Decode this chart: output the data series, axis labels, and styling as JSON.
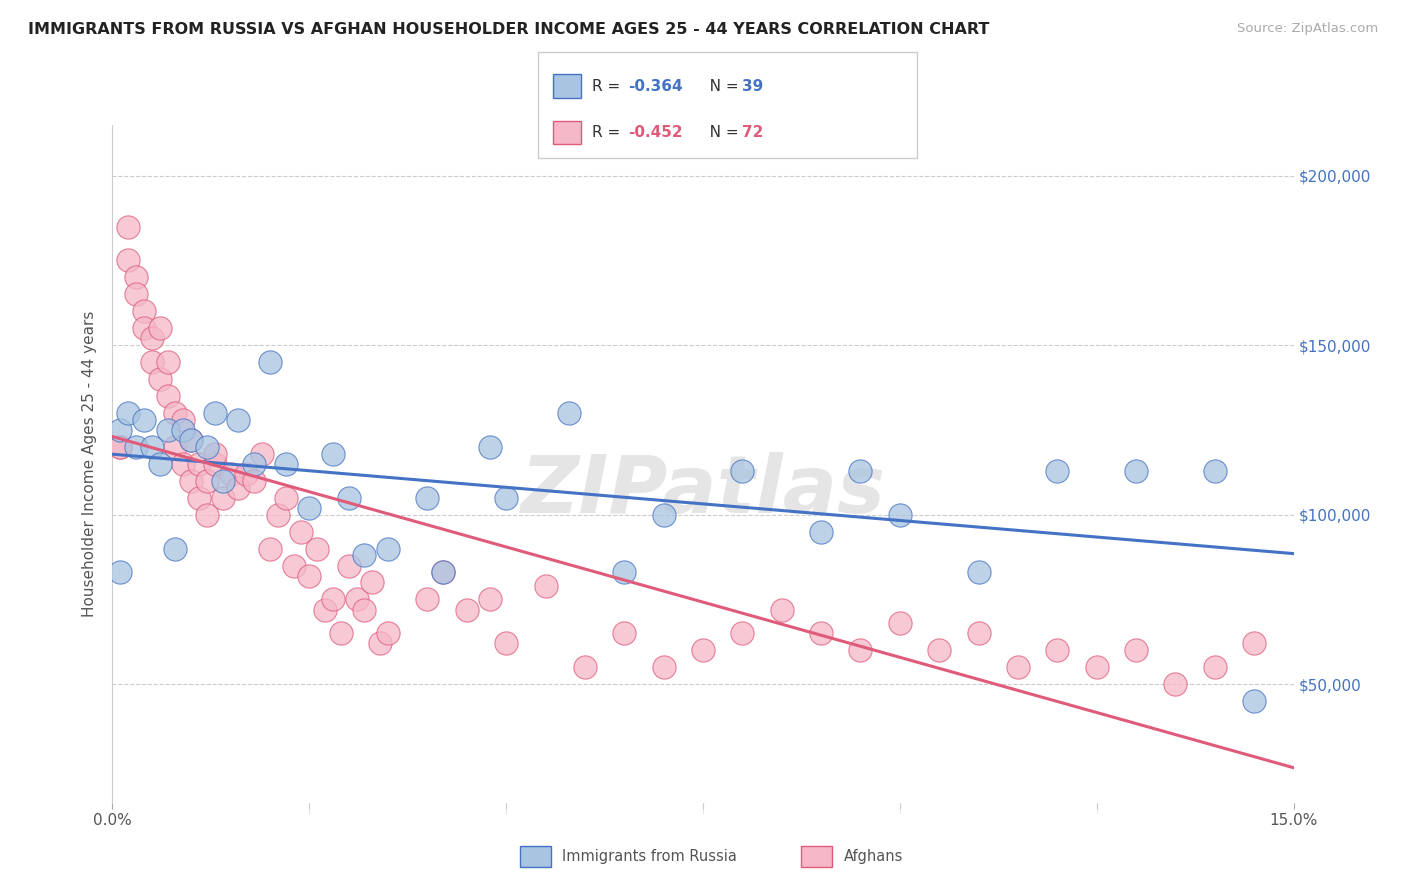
{
  "title": "IMMIGRANTS FROM RUSSIA VS AFGHAN HOUSEHOLDER INCOME AGES 25 - 44 YEARS CORRELATION CHART",
  "source": "Source: ZipAtlas.com",
  "ylabel": "Householder Income Ages 25 - 44 years",
  "yticks": [
    50000,
    100000,
    150000,
    200000
  ],
  "ytick_labels": [
    "$50,000",
    "$100,000",
    "$150,000",
    "$200,000"
  ],
  "xmin": 0.0,
  "xmax": 0.15,
  "ymin": 15000,
  "ymax": 215000,
  "legend_label_russia": "Immigrants from Russia",
  "legend_label_afghan": "Afghans",
  "russia_color": "#a8c4e0",
  "afghan_color": "#f4b8c8",
  "russia_line_color": "#4472c4",
  "afghan_line_color": "#e05a7a",
  "watermark": "ZIPatlas",
  "russia_scatter_x": [
    0.001,
    0.001,
    0.002,
    0.003,
    0.004,
    0.005,
    0.006,
    0.007,
    0.008,
    0.009,
    0.01,
    0.012,
    0.013,
    0.014,
    0.016,
    0.018,
    0.02,
    0.022,
    0.025,
    0.028,
    0.03,
    0.032,
    0.035,
    0.04,
    0.042,
    0.048,
    0.05,
    0.058,
    0.065,
    0.07,
    0.08,
    0.09,
    0.095,
    0.1,
    0.11,
    0.12,
    0.13,
    0.14,
    0.145
  ],
  "russia_scatter_y": [
    83000,
    125000,
    130000,
    120000,
    128000,
    120000,
    115000,
    125000,
    90000,
    125000,
    122000,
    120000,
    130000,
    110000,
    128000,
    115000,
    145000,
    115000,
    102000,
    118000,
    105000,
    88000,
    90000,
    105000,
    83000,
    120000,
    105000,
    130000,
    83000,
    100000,
    113000,
    95000,
    113000,
    100000,
    83000,
    113000,
    113000,
    113000,
    45000
  ],
  "afghan_scatter_x": [
    0.001,
    0.001,
    0.002,
    0.002,
    0.003,
    0.003,
    0.004,
    0.004,
    0.005,
    0.005,
    0.006,
    0.006,
    0.007,
    0.007,
    0.008,
    0.008,
    0.009,
    0.009,
    0.01,
    0.01,
    0.011,
    0.011,
    0.012,
    0.012,
    0.013,
    0.013,
    0.014,
    0.015,
    0.016,
    0.017,
    0.018,
    0.019,
    0.02,
    0.021,
    0.022,
    0.023,
    0.024,
    0.025,
    0.026,
    0.027,
    0.028,
    0.029,
    0.03,
    0.031,
    0.032,
    0.033,
    0.034,
    0.035,
    0.04,
    0.042,
    0.045,
    0.048,
    0.05,
    0.055,
    0.06,
    0.065,
    0.07,
    0.075,
    0.08,
    0.085,
    0.09,
    0.095,
    0.1,
    0.105,
    0.11,
    0.115,
    0.12,
    0.125,
    0.13,
    0.135,
    0.14,
    0.145
  ],
  "afghan_scatter_y": [
    120000,
    120000,
    175000,
    185000,
    170000,
    165000,
    160000,
    155000,
    152000,
    145000,
    155000,
    140000,
    145000,
    135000,
    130000,
    120000,
    128000,
    115000,
    122000,
    110000,
    115000,
    105000,
    110000,
    100000,
    115000,
    118000,
    105000,
    112000,
    108000,
    112000,
    110000,
    118000,
    90000,
    100000,
    105000,
    85000,
    95000,
    82000,
    90000,
    72000,
    75000,
    65000,
    85000,
    75000,
    72000,
    80000,
    62000,
    65000,
    75000,
    83000,
    72000,
    75000,
    62000,
    79000,
    55000,
    65000,
    55000,
    60000,
    65000,
    72000,
    65000,
    60000,
    68000,
    60000,
    65000,
    55000,
    60000,
    55000,
    60000,
    50000,
    55000,
    62000
  ]
}
